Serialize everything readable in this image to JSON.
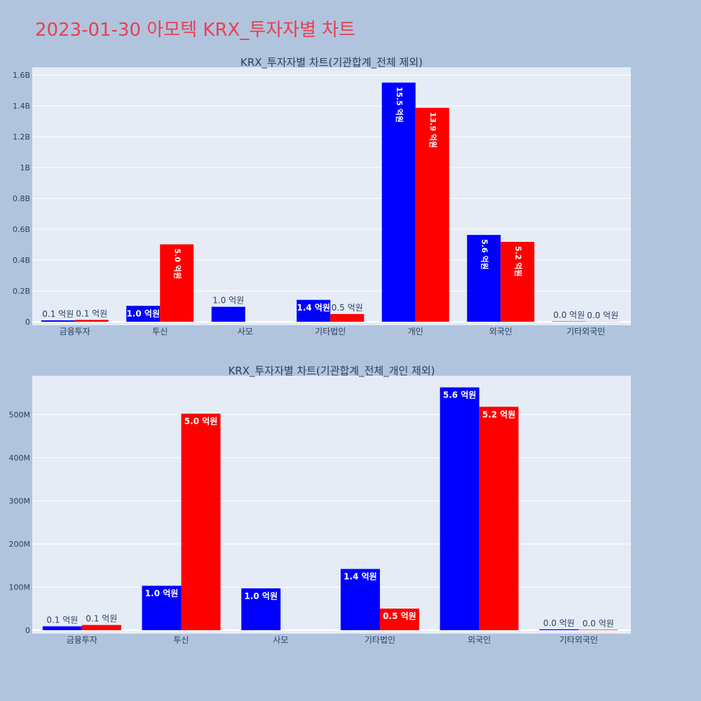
{
  "title": "2023-01-30 아모텍 KRX_투자자별 차트",
  "colors": {
    "series_a": "#0000ff",
    "series_b": "#ff0000",
    "plot_bg": "#e5ecf6",
    "page_bg": "#b0c4de",
    "title": "#e8404f"
  },
  "chart_data": [
    {
      "type": "bar",
      "title": "KRX_투자자별 차트(기관합계_전체 제외)",
      "categories": [
        "금융투자",
        "투신",
        "사모",
        "기타법인",
        "개인",
        "외국인",
        "기타외국인"
      ],
      "series": [
        {
          "color": "#0000ff",
          "values": [
            9000000,
            103000000,
            97000000,
            142000000,
            1551000000,
            563000000,
            2000000
          ],
          "labels": [
            "0.1 억원",
            "1.0 억원",
            "1.0 억원",
            "1.4 억원",
            "15.5 억원",
            "5.6 억원",
            "0.0 억원"
          ]
        },
        {
          "color": "#ff0000",
          "values": [
            12000000,
            502000000,
            0,
            50000000,
            1387000000,
            518000000,
            1000000
          ],
          "labels": [
            "0.1 억원",
            "5.0 억원",
            "",
            "0.5 억원",
            "13.9 억원",
            "5.2 억원",
            "0.0 억원"
          ]
        }
      ],
      "ylim": [
        0,
        1650000000
      ],
      "yticks": [
        0,
        200000000,
        400000000,
        600000000,
        800000000,
        1000000000,
        1200000000,
        1400000000,
        1600000000
      ],
      "ytick_labels": [
        "0",
        "0.2B",
        "0.4B",
        "0.6B",
        "0.8B",
        "1B",
        "1.2B",
        "1.4B",
        "1.6B"
      ],
      "grid": true
    },
    {
      "type": "bar",
      "title": "KRX_투자자별 차트(기관합계_전체_개인 제외)",
      "categories": [
        "금융투자",
        "투신",
        "사모",
        "기타법인",
        "외국인",
        "기타외국인"
      ],
      "series": [
        {
          "color": "#0000ff",
          "values": [
            9000000,
            103000000,
            97000000,
            142000000,
            563000000,
            2000000
          ],
          "labels": [
            "0.1 억원",
            "1.0 억원",
            "1.0 억원",
            "1.4 억원",
            "5.6 억원",
            "0.0 억원"
          ]
        },
        {
          "color": "#ff0000",
          "values": [
            12000000,
            502000000,
            0,
            50000000,
            518000000,
            1000000
          ],
          "labels": [
            "0.1 억원",
            "5.0 억원",
            "",
            "0.5 억원",
            "5.2 억원",
            "0.0 억원"
          ]
        }
      ],
      "ylim": [
        0,
        590000000
      ],
      "yticks": [
        0,
        100000000,
        200000000,
        300000000,
        400000000,
        500000000
      ],
      "ytick_labels": [
        "0",
        "100M",
        "200M",
        "300M",
        "400M",
        "500M"
      ],
      "grid": true
    }
  ]
}
